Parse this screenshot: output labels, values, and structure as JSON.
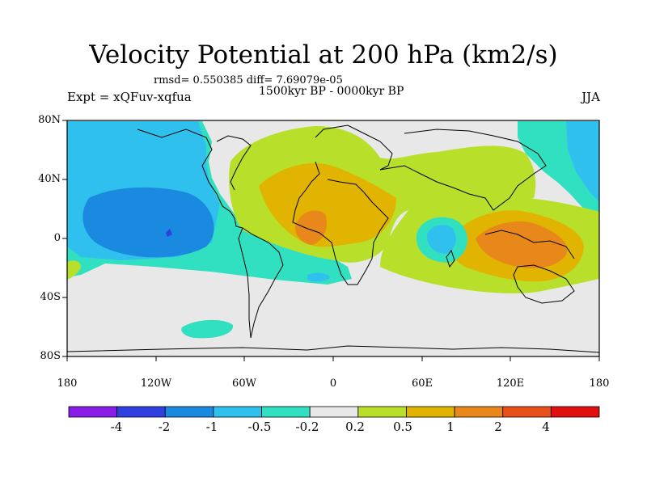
{
  "title": "Velocity Potential at 200 hPa (km2/s)",
  "stats": "rmsd= 0.550385 diff= 7.69079e-05",
  "period": "1500kyr BP - 0000kyr BP",
  "experiment": "Expt = xQFuv-xqfua",
  "season": "JJA",
  "y_ticks": [
    "80N",
    "40N",
    "0",
    "40S",
    "80S"
  ],
  "x_ticks": [
    "180",
    "120W",
    "60W",
    "0",
    "60E",
    "120E",
    "180"
  ],
  "colorbar": {
    "labels": [
      "-4",
      "-2",
      "-1",
      "-0.5",
      "-0.2",
      "0.2",
      "0.5",
      "1",
      "2",
      "4"
    ],
    "colors": [
      "#8a1ce8",
      "#2f3fe0",
      "#1a8ae0",
      "#30c0ee",
      "#30e0c0",
      "#e8e8e8",
      "#b8e02a",
      "#e0b400",
      "#e8881a",
      "#e8501a",
      "#e01010"
    ]
  },
  "colors": {
    "land_outline": "#000000",
    "neutral": "#e8e8e8"
  }
}
